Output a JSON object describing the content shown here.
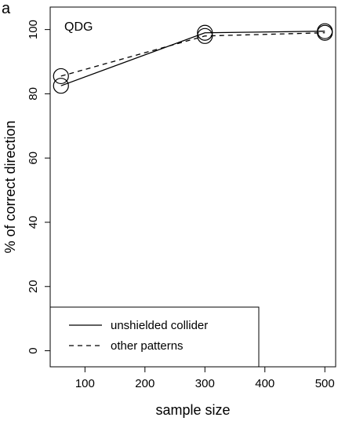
{
  "panel_label": "a",
  "chart_data": {
    "type": "line",
    "title": "QDG",
    "xlabel": "sample size",
    "ylabel": "% of correct direction",
    "xlim": [
      42,
      518
    ],
    "ylim": [
      -5,
      107
    ],
    "x_ticks": [
      100,
      200,
      300,
      400,
      500
    ],
    "y_ticks": [
      0,
      20,
      40,
      60,
      80,
      100
    ],
    "x_tick_labels": [
      "100",
      "200",
      "300",
      "400",
      "500"
    ],
    "y_tick_labels": [
      "0",
      "20",
      "40",
      "60",
      "80",
      "100"
    ],
    "legend_placement": "bottom-left",
    "grid": false,
    "series": [
      {
        "name": "unshielded collider",
        "line_style": "solid",
        "x": [
          60,
          300,
          500
        ],
        "y": [
          82.5,
          99,
          99.5
        ]
      },
      {
        "name": "other patterns",
        "line_style": "dashed",
        "x": [
          60,
          300,
          500
        ],
        "y": [
          85.5,
          98,
          99
        ]
      }
    ]
  }
}
